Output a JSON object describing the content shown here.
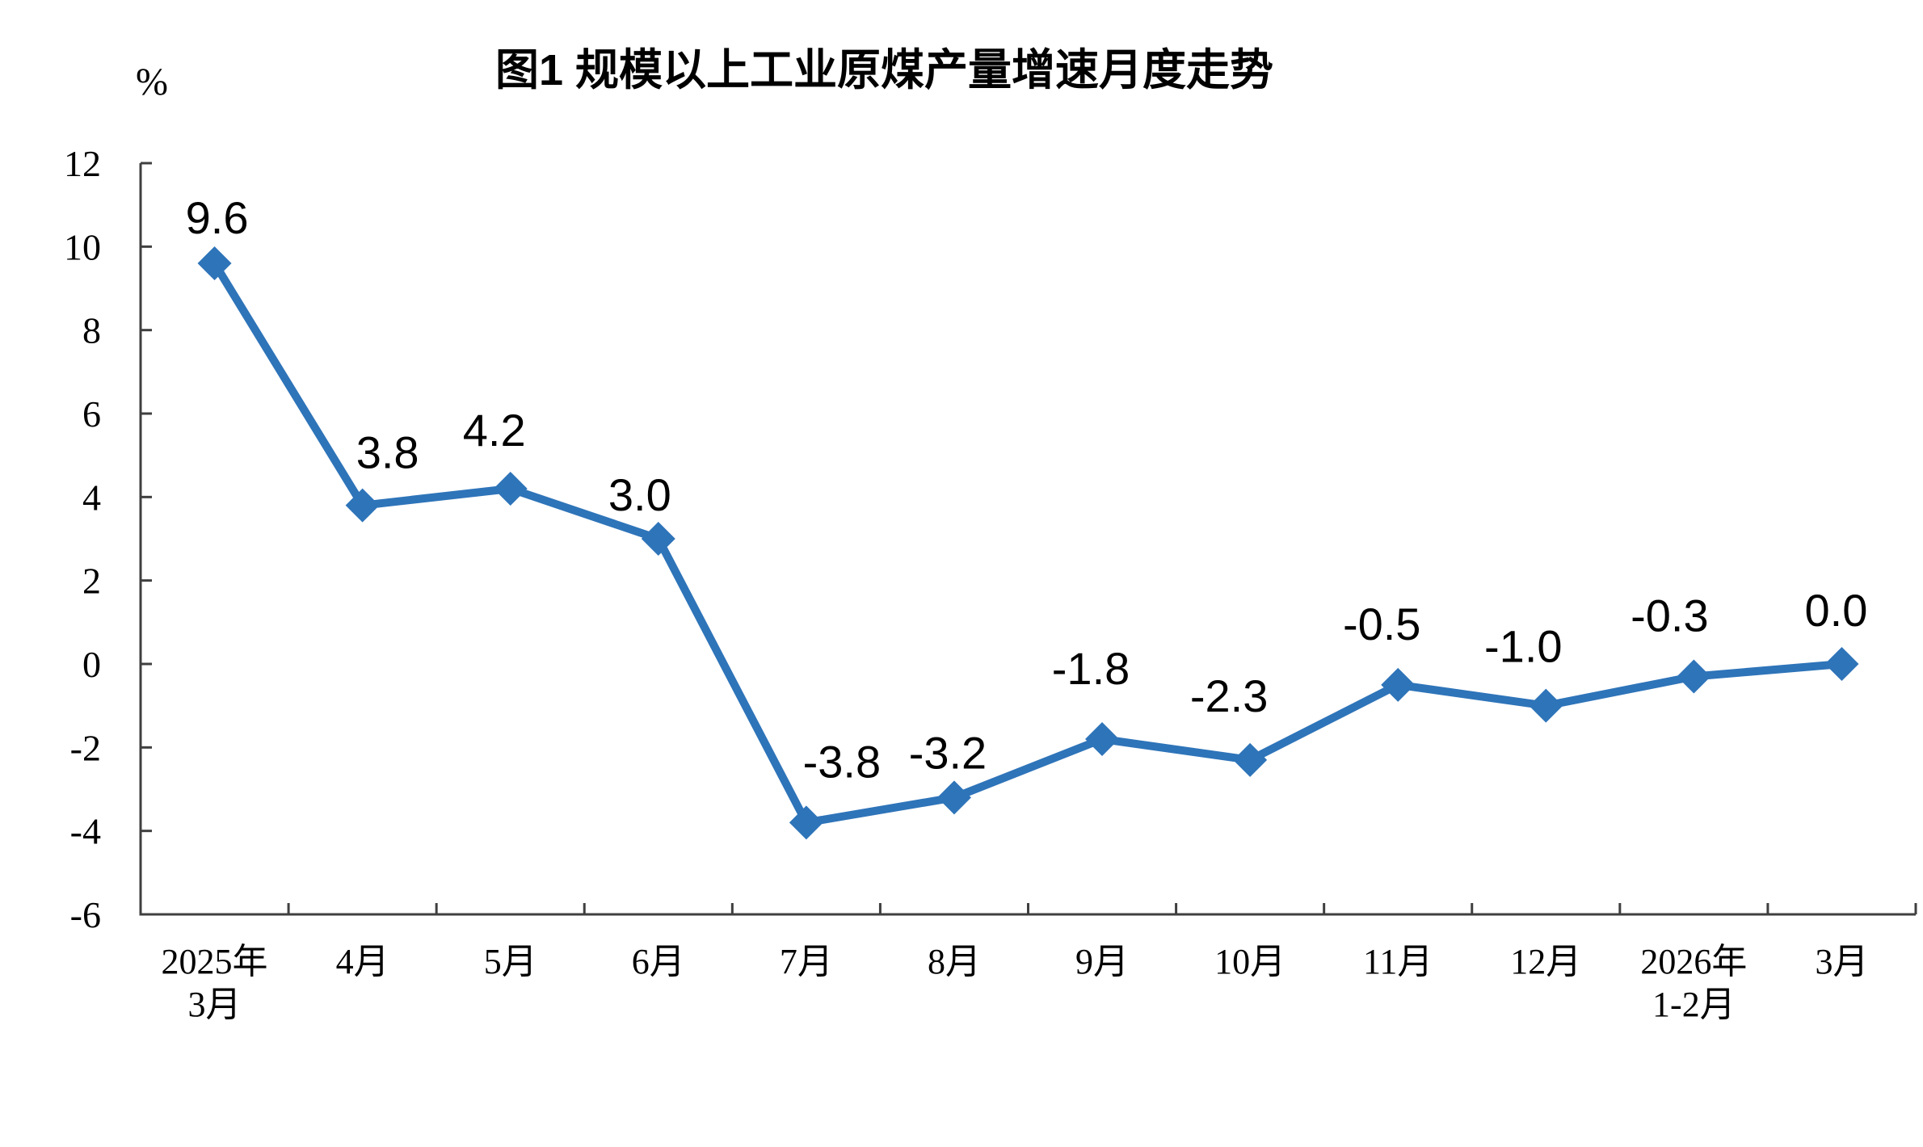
{
  "page": {
    "background": "#ffffff"
  },
  "chart_data": {
    "type": "line",
    "title": "图1  规模以上工业原煤产量增速月度走势",
    "y_unit": "%",
    "categories": [
      [
        "2025年",
        "3月"
      ],
      [
        "4月"
      ],
      [
        "5月"
      ],
      [
        "6月"
      ],
      [
        "7月"
      ],
      [
        "8月"
      ],
      [
        "9月"
      ],
      [
        "10月"
      ],
      [
        "11月"
      ],
      [
        "12月"
      ],
      [
        "2026年",
        "1-2月"
      ],
      [
        "3月"
      ]
    ],
    "values": [
      9.6,
      3.8,
      4.2,
      3.0,
      -3.8,
      -3.2,
      -1.8,
      -2.3,
      -0.5,
      -1.0,
      -0.3,
      0.0
    ],
    "point_labels": [
      "9.6",
      "3.8",
      "4.2",
      "3.0",
      "-3.8",
      "-3.2",
      "-1.8",
      "-2.3",
      "-0.5",
      "-1.0",
      "-0.3",
      "0.0"
    ],
    "y_ticks": [
      12,
      10,
      8,
      6,
      4,
      2,
      0,
      -2,
      -4,
      -6
    ],
    "y_tick_labels": [
      "12",
      "10",
      "8",
      "6",
      "4",
      "2",
      "0",
      "-2",
      "-4",
      "-6"
    ],
    "ylim": [
      -6,
      12
    ],
    "grid": false,
    "legend": "none",
    "marker": "diamond",
    "label_position": "above",
    "series_color": "#2E74B9",
    "axis_color": "#3f3f3f",
    "text_color": "#000000"
  }
}
